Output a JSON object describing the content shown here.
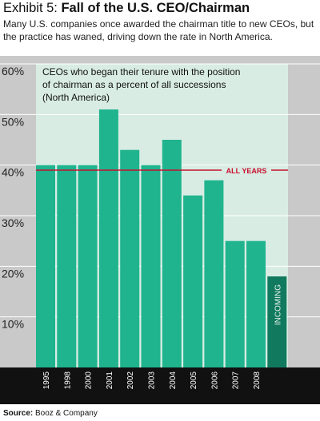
{
  "header": {
    "exhibit": "Exhibit 5: ",
    "title": "Fall of the U.S. CEO/Chairman",
    "subtitle": "Many U.S. companies once awarded the chairman title to new CEOs, but the practice has waned, driving down the rate in North America."
  },
  "source": {
    "label": "Source:",
    "text": " Booz & Company"
  },
  "colors": {
    "bar": "#1fb48e",
    "bar_incoming": "#117a5e",
    "plot_bg": "#d8ece3",
    "frame_bg": "#c9c9c9",
    "reference_line": "#c8102e"
  },
  "chart_data": {
    "type": "bar",
    "annotation": "CEOs who began their tenure with the position of chairman as a percent of all successions (North America)",
    "categories": [
      "1995",
      "1998",
      "2000",
      "2001",
      "2002",
      "2003",
      "2004",
      "2005",
      "2006",
      "2007",
      "2008",
      "INCOMING"
    ],
    "values": [
      40,
      40,
      40,
      51,
      43,
      40,
      45,
      34,
      37,
      25,
      25,
      18
    ],
    "ylim": [
      0,
      60
    ],
    "yticks": [
      "60%",
      "50%",
      "40%",
      "30%",
      "20%",
      "10%"
    ],
    "ytick_values": [
      60,
      50,
      40,
      30,
      20,
      10
    ],
    "reference_line": {
      "label": "ALL YEARS",
      "value": 39
    },
    "grid": true,
    "legend": "none"
  }
}
